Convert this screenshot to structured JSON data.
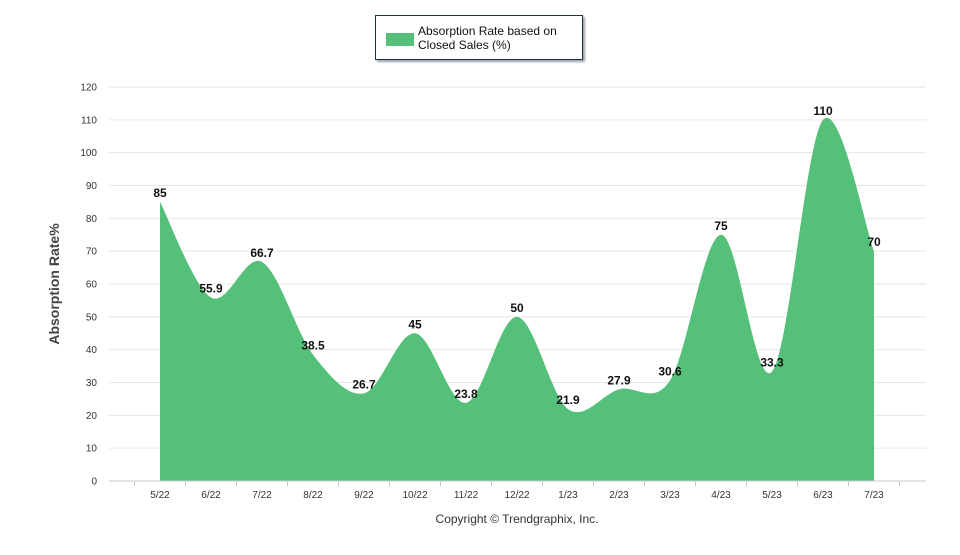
{
  "chart_data": {
    "type": "area",
    "title": "",
    "xlabel": "",
    "ylabel": "Absorption Rate%",
    "ylim": [
      0,
      120
    ],
    "yticks": [
      0,
      10,
      20,
      30,
      40,
      50,
      60,
      70,
      80,
      90,
      100,
      110,
      120
    ],
    "grid": true,
    "legend_position": "top-center",
    "categories": [
      "5/22",
      "6/22",
      "7/22",
      "8/22",
      "9/22",
      "10/22",
      "11/22",
      "12/22",
      "1/23",
      "2/23",
      "3/23",
      "4/23",
      "5/23",
      "6/23",
      "7/23"
    ],
    "series": [
      {
        "name": "Absorption Rate based on Closed Sales (%)",
        "values": [
          85,
          55.9,
          66.7,
          38.5,
          26.7,
          45,
          23.8,
          50,
          21.9,
          27.9,
          30.6,
          75,
          33.3,
          110,
          70
        ],
        "labels": [
          "85",
          "55.9",
          "66.7",
          "38.5",
          "26.7",
          "45",
          "23.8",
          "50",
          "21.9",
          "27.9",
          "30.6",
          "75",
          "33.3",
          "110",
          "70"
        ],
        "color": "#55c07a"
      }
    ]
  },
  "legend": {
    "label": "Absorption Rate based on Closed Sales (%)"
  },
  "footer": {
    "copyright": "Copyright © Trendgraphix, Inc."
  },
  "colors": {
    "area_fill": "#55c07a",
    "grid": "#e6e6e6",
    "axis": "#c8c8c8",
    "tick_text": "#333333",
    "label_text": "#111111"
  }
}
